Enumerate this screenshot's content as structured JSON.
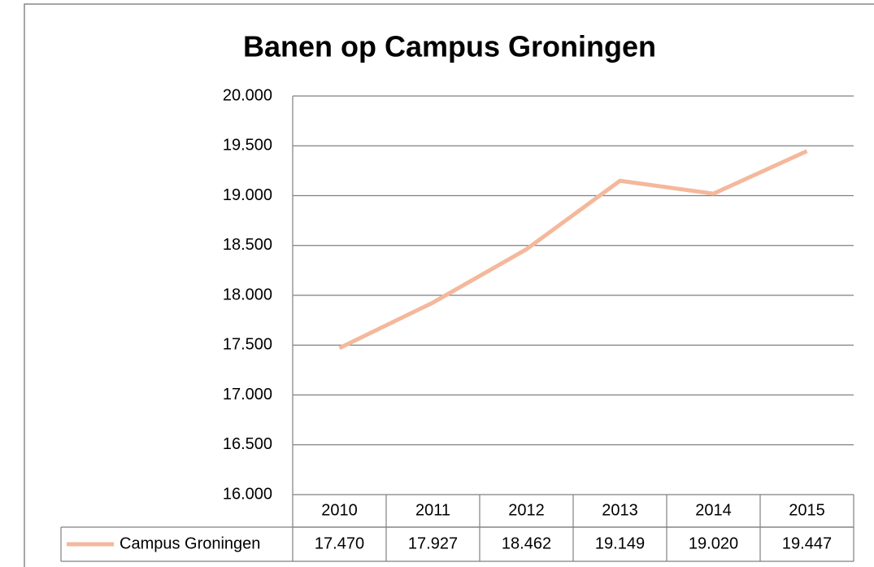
{
  "chart_data": {
    "type": "line",
    "title": "Banen op Campus Groningen",
    "categories": [
      "2010",
      "2011",
      "2012",
      "2013",
      "2014",
      "2015"
    ],
    "series": [
      {
        "name": "Campus Groningen",
        "color": "#f4b89c",
        "values": [
          17470,
          17927,
          18462,
          19149,
          19020,
          19447
        ],
        "value_labels": [
          "17.470",
          "17.927",
          "18.462",
          "19.149",
          "19.020",
          "19.447"
        ]
      }
    ],
    "ylim": [
      16000,
      20000
    ],
    "yticks": [
      {
        "value": 16000,
        "label": "16.000"
      },
      {
        "value": 16500,
        "label": "16.500"
      },
      {
        "value": 17000,
        "label": "17.000"
      },
      {
        "value": 17500,
        "label": "17.500"
      },
      {
        "value": 18000,
        "label": "18.000"
      },
      {
        "value": 18500,
        "label": "18.500"
      },
      {
        "value": 19000,
        "label": "19.000"
      },
      {
        "value": 19500,
        "label": "19.500"
      },
      {
        "value": 20000,
        "label": "20.000"
      }
    ],
    "grid": true
  }
}
